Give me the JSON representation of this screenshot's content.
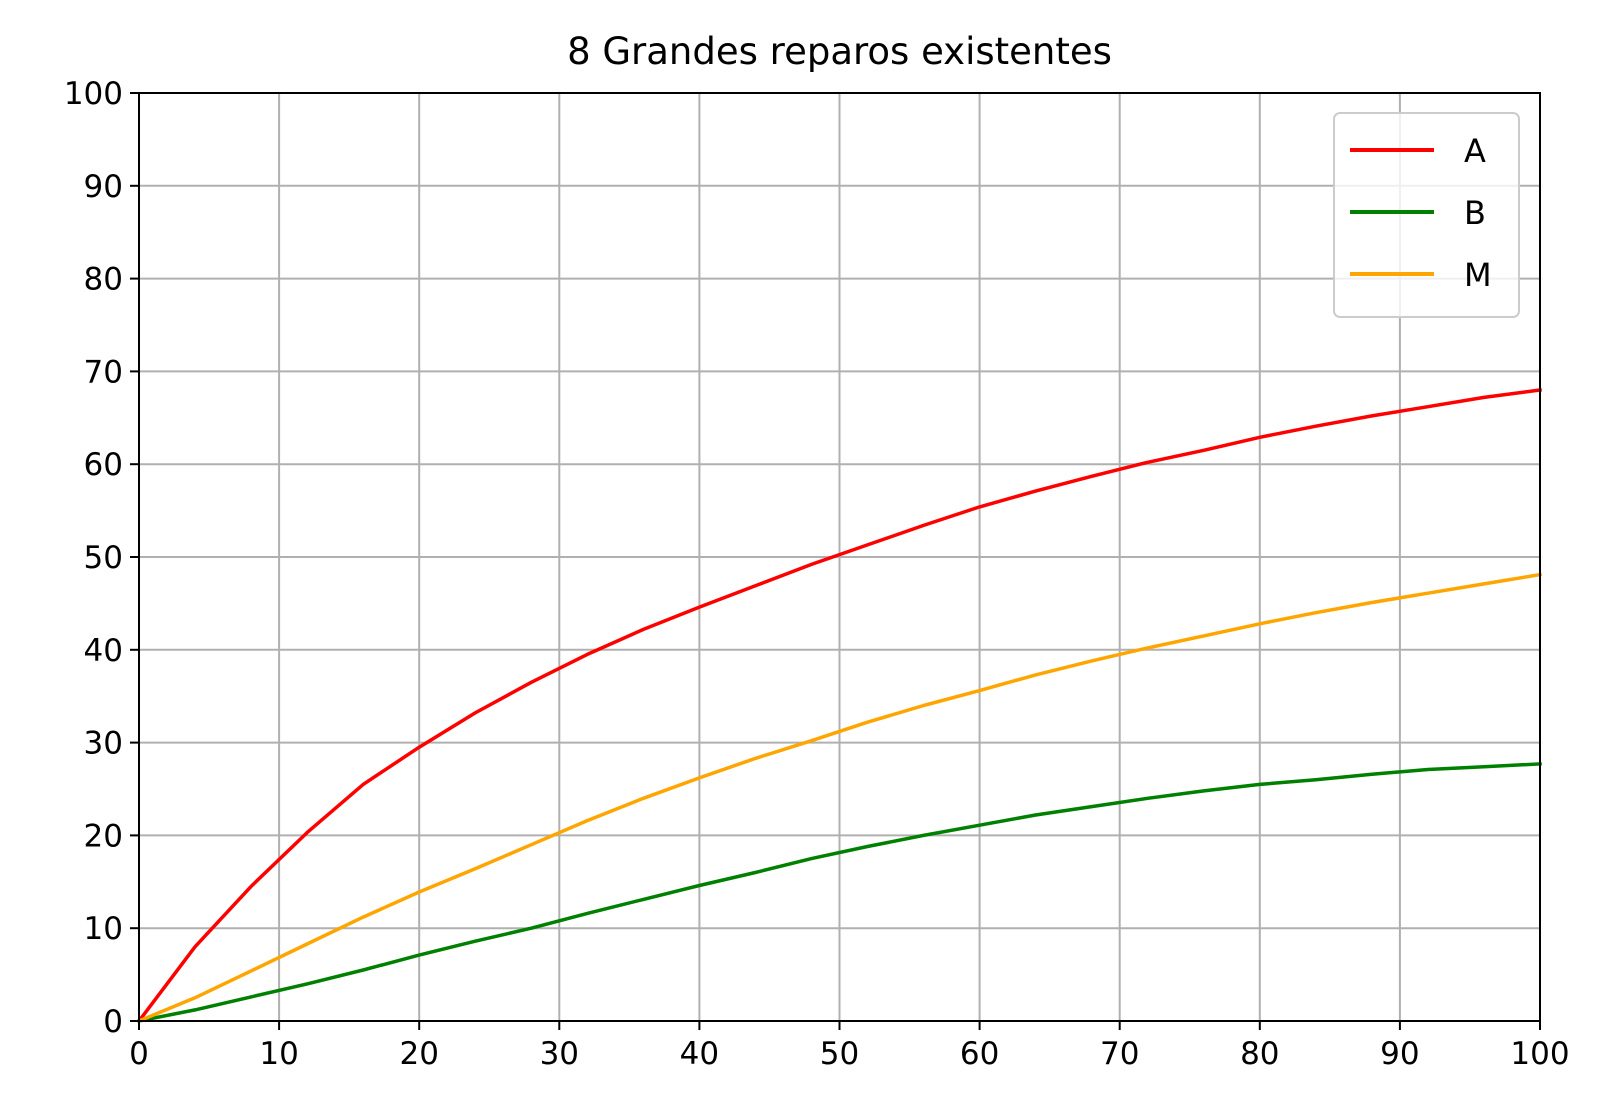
{
  "chart_data": {
    "type": "line",
    "title": "8 Grandes reparos existentes",
    "xlabel": "",
    "ylabel": "",
    "xlim": [
      0,
      100
    ],
    "ylim": [
      0,
      100
    ],
    "xticks": [
      "0",
      "10",
      "20",
      "30",
      "40",
      "50",
      "60",
      "70",
      "80",
      "90",
      "100"
    ],
    "yticks": [
      "0",
      "10",
      "20",
      "30",
      "40",
      "50",
      "60",
      "70",
      "80",
      "90",
      "100"
    ],
    "grid": true,
    "legend_position": "top-right",
    "series": [
      {
        "name": "A",
        "color": "#ff0000",
        "x": [
          0,
          4,
          8,
          12,
          16,
          20,
          24,
          28,
          32,
          36,
          40,
          44,
          48,
          52,
          56,
          60,
          64,
          68,
          72,
          76,
          80,
          84,
          88,
          92,
          96,
          100
        ],
        "y": [
          0,
          8,
          14.5,
          20.3,
          25.5,
          29.5,
          33.2,
          36.5,
          39.5,
          42.2,
          44.6,
          46.9,
          49.2,
          51.3,
          53.4,
          55.4,
          57.1,
          58.7,
          60.2,
          61.5,
          62.9,
          64.1,
          65.2,
          66.2,
          67.2,
          68
        ]
      },
      {
        "name": "B",
        "color": "#008000",
        "x": [
          0,
          4,
          8,
          12,
          16,
          20,
          24,
          28,
          32,
          36,
          40,
          44,
          48,
          52,
          56,
          60,
          64,
          68,
          72,
          76,
          80,
          84,
          88,
          92,
          96,
          100
        ],
        "y": [
          0,
          1.2,
          2.6,
          4,
          5.5,
          7.1,
          8.6,
          10,
          11.6,
          13.1,
          14.6,
          16,
          17.5,
          18.8,
          20,
          21.1,
          22.2,
          23.1,
          24,
          24.8,
          25.5,
          26,
          26.6,
          27.1,
          27.4,
          27.7
        ]
      },
      {
        "name": "M",
        "color": "#ffa500",
        "x": [
          0,
          4,
          8,
          12,
          16,
          20,
          24,
          28,
          32,
          36,
          40,
          44,
          48,
          52,
          56,
          60,
          64,
          68,
          72,
          76,
          80,
          84,
          88,
          92,
          96,
          100
        ],
        "y": [
          0,
          2.5,
          5.4,
          8.3,
          11.2,
          13.9,
          16.4,
          19,
          21.6,
          24,
          26.2,
          28.3,
          30.2,
          32.2,
          34,
          35.6,
          37.3,
          38.8,
          40.2,
          41.5,
          42.8,
          44,
          45.1,
          46.1,
          47.1,
          48.1
        ]
      }
    ]
  }
}
